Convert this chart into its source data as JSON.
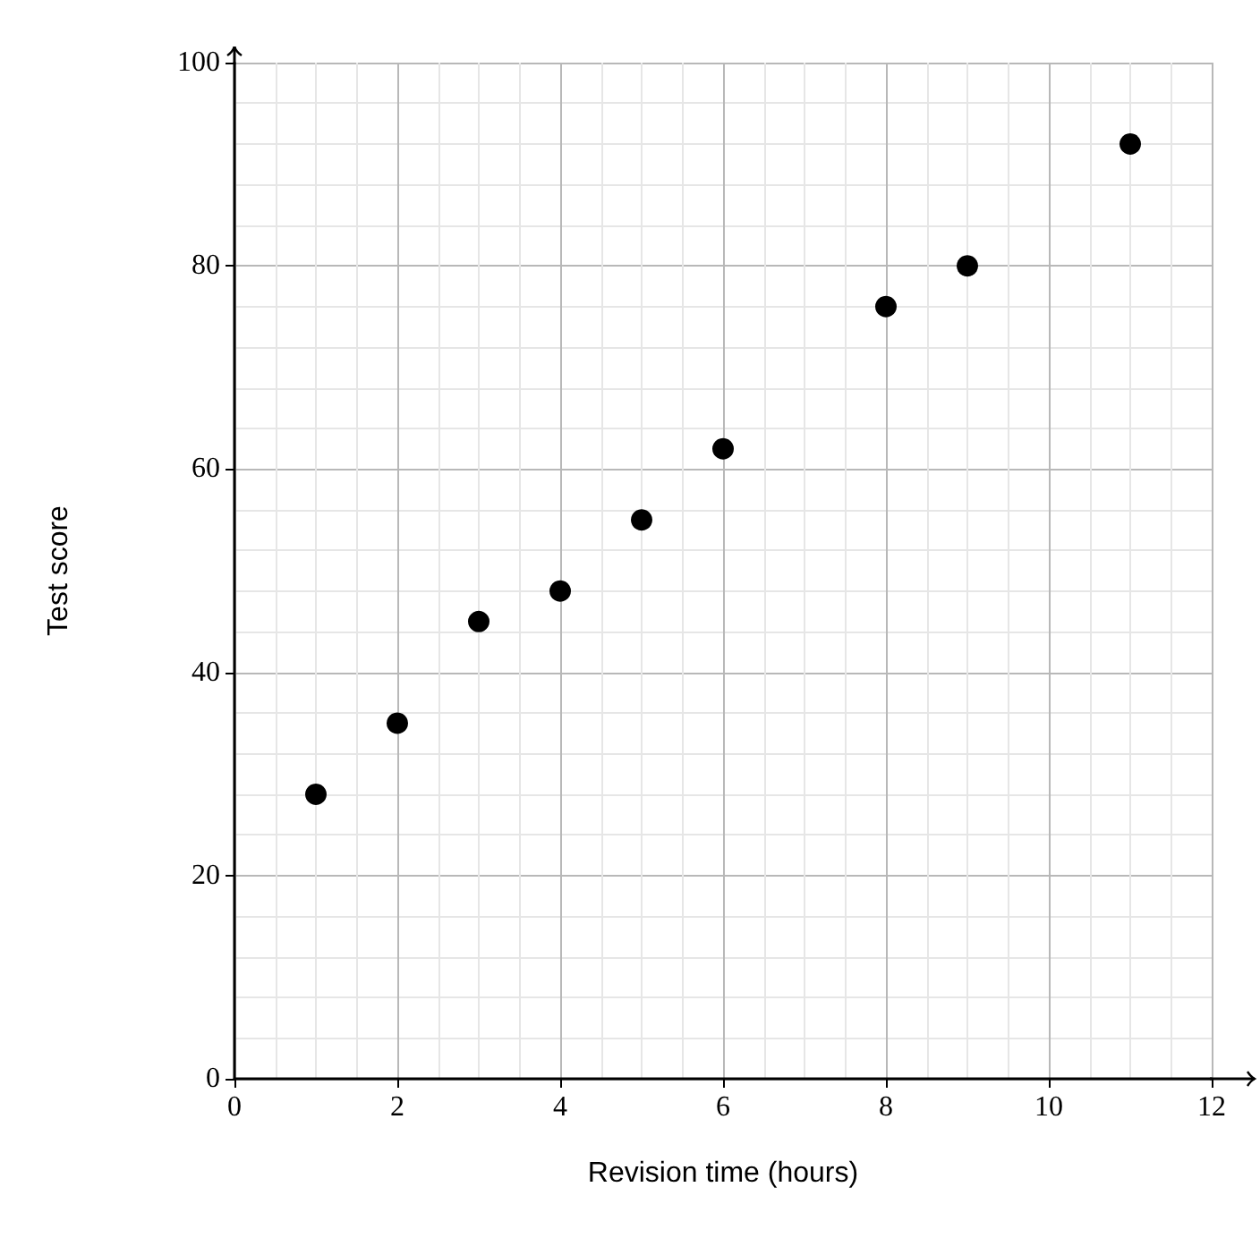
{
  "chart_data": {
    "type": "scatter",
    "xlabel": "Revision time (hours)",
    "ylabel": "Test score",
    "x": [
      1,
      2,
      3,
      4,
      5,
      6,
      8,
      9,
      11
    ],
    "values": [
      28,
      35,
      45,
      48,
      55,
      62,
      76,
      80,
      92
    ],
    "color": "#000000",
    "marker": "circle",
    "xlim": [
      0,
      12
    ],
    "xticks": [
      0,
      2,
      4,
      6,
      8,
      10,
      12
    ],
    "ylim": [
      0,
      100
    ],
    "yticks": [
      0,
      20,
      40,
      60,
      80,
      100
    ],
    "grid": true
  }
}
